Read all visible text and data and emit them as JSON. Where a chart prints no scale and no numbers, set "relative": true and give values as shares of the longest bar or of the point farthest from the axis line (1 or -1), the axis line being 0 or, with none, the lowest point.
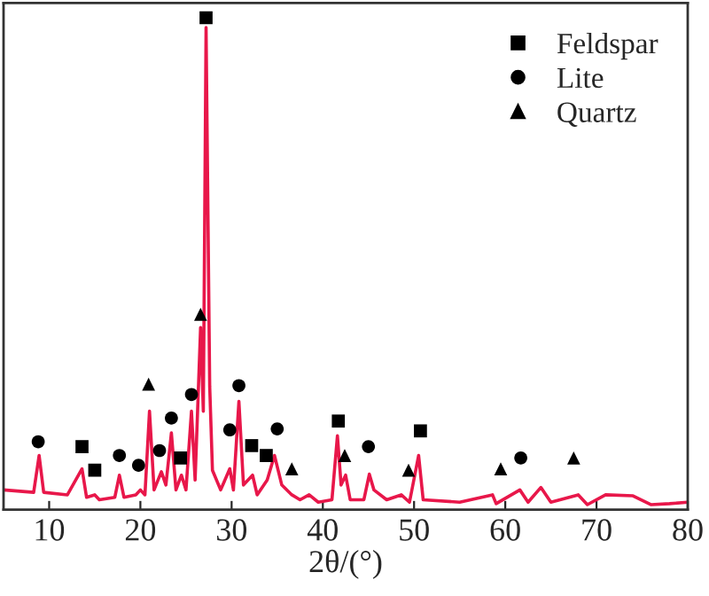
{
  "chart_data": {
    "type": "line",
    "xlabel": "2θ/(°)",
    "relative": true,
    "xlim": [
      5,
      80
    ],
    "xticks": [
      10,
      20,
      30,
      40,
      50,
      60,
      70,
      80
    ],
    "tick_labels": "x",
    "grid": false,
    "legend": "top right",
    "series": [
      {
        "color": "#e8174a",
        "marker": "none",
        "x": [
          5,
          8.3,
          8.9,
          9.4,
          12,
          13.6,
          14.1,
          15,
          15.5,
          17.2,
          17.7,
          18.2,
          19.5,
          20.0,
          20.5,
          21.0,
          21.5,
          22.3,
          22.8,
          23.4,
          23.9,
          24.5,
          25.0,
          25.6,
          26.0,
          26.6,
          26.9,
          27.2,
          27.6,
          27.9,
          28.8,
          29.8,
          30.2,
          30.8,
          31.3,
          32.3,
          32.8,
          33.9,
          34.7,
          35.5,
          36.6,
          37.5,
          38.5,
          39.5,
          41.0,
          41.6,
          42.0,
          42.5,
          43.0,
          44.5,
          45.1,
          45.6,
          47,
          48.6,
          49.5,
          50.5,
          51,
          55,
          58.6,
          59,
          61.6,
          62.5,
          63.9,
          65,
          68,
          69,
          71,
          74,
          76,
          78,
          80
        ],
        "values": [
          0.04,
          0.035,
          0.11,
          0.035,
          0.03,
          0.083,
          0.025,
          0.03,
          0.02,
          0.025,
          0.07,
          0.025,
          0.03,
          0.04,
          0.03,
          0.2,
          0.04,
          0.077,
          0.05,
          0.156,
          0.04,
          0.07,
          0.04,
          0.2,
          0.06,
          0.37,
          0.2,
          0.98,
          0.25,
          0.08,
          0.04,
          0.083,
          0.04,
          0.22,
          0.05,
          0.07,
          0.03,
          0.06,
          0.11,
          0.05,
          0.03,
          0.02,
          0.03,
          0.015,
          0.02,
          0.15,
          0.05,
          0.07,
          0.02,
          0.02,
          0.072,
          0.04,
          0.02,
          0.03,
          0.015,
          0.11,
          0.02,
          0.015,
          0.03,
          0.012,
          0.04,
          0.015,
          0.045,
          0.015,
          0.03,
          0.01,
          0.03,
          0.028,
          0.01,
          0.012,
          0.015
        ]
      },
      {
        "type": "scatter",
        "name": "Feldspar",
        "color": "#000000",
        "marker": "square",
        "x": [
          13.6,
          15.0,
          24.4,
          27.2,
          32.2,
          33.8,
          41.7,
          50.7
        ],
        "values": [
          0.128,
          0.08,
          0.105,
          1.0,
          0.13,
          0.11,
          0.18,
          0.16
        ]
      },
      {
        "type": "scatter",
        "name": "Lite",
        "color": "#000000",
        "marker": "circle",
        "x": [
          8.8,
          17.7,
          19.8,
          22.1,
          23.4,
          25.6,
          29.8,
          30.8,
          35.0,
          45.0,
          61.7
        ],
        "values": [
          0.138,
          0.11,
          0.09,
          0.12,
          0.186,
          0.234,
          0.162,
          0.252,
          0.164,
          0.128,
          0.105
        ]
      },
      {
        "type": "scatter",
        "name": "Quartz",
        "color": "#000000",
        "marker": "triangle",
        "x": [
          20.9,
          26.6,
          36.6,
          42.4,
          49.4,
          59.5,
          67.5
        ],
        "values": [
          0.255,
          0.397,
          0.083,
          0.11,
          0.08,
          0.083,
          0.105
        ]
      }
    ]
  }
}
